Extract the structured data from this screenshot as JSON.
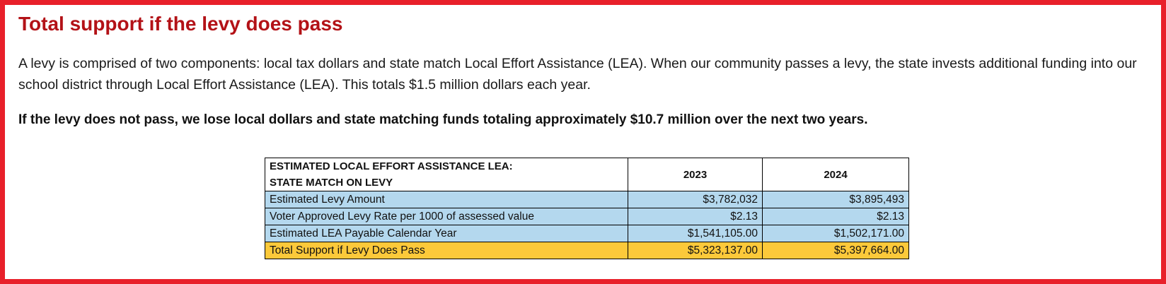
{
  "title": "Total support if the levy does pass",
  "intro": "A levy is comprised of two components: local tax dollars and state match Local Effort Assistance (LEA). When our community passes a levy, the state invests additional funding into our school district through Local Effort Assistance (LEA). This totals $1.5 million dollars each year.",
  "warning": "If the levy does not pass, we lose local dollars and state matching funds totaling approximately $10.7 million over the next two years.",
  "table": {
    "header_line1": "ESTIMATED LOCAL EFFORT ASSISTANCE LEA:",
    "header_line2": "STATE MATCH ON LEVY",
    "years": [
      "2023",
      "2024"
    ],
    "rows": [
      {
        "label": "Estimated Levy Amount",
        "values": [
          "$3,782,032",
          "$3,895,493"
        ]
      },
      {
        "label": "Voter Approved Levy Rate per 1000 of assessed value",
        "values": [
          "$2.13",
          "$2.13"
        ]
      },
      {
        "label": "Estimated LEA Payable Calendar Year",
        "values": [
          "$1,541,105.00",
          "$1,502,171.00"
        ]
      }
    ],
    "total": {
      "label": "Total Support if Levy Does Pass",
      "values": [
        "$5,323,137.00",
        "$5,397,664.00"
      ]
    }
  },
  "colors": {
    "border": "#e8202a",
    "title": "#b31217",
    "row_blue": "#b4d8ee",
    "row_gold": "#fcc93a"
  }
}
